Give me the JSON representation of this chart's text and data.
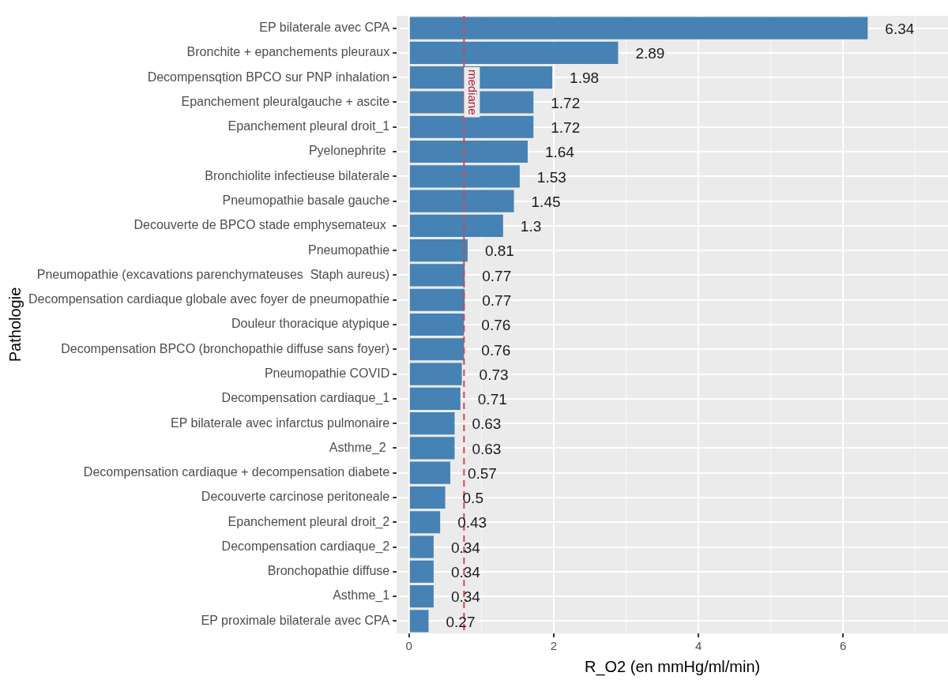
{
  "chart_data": {
    "type": "bar",
    "orientation": "horizontal",
    "xlabel": "R_O2 (en mmHg/ml/min)",
    "ylabel": "Pathologie",
    "categories": [
      "EP bilaterale avec CPA",
      "Bronchite + epanchements pleuraux",
      "Decompensqtion BPCO sur PNP inhalation",
      "Epanchement pleuralgauche + ascite",
      "Epanchement pleural droit_1",
      "Pyelonephrite ",
      "Bronchiolite infectieuse bilaterale",
      "Pneumopathie basale gauche",
      "Decouverte de BPCO stade emphysemateux ",
      "Pneumopathie",
      "Pneumopathie (excavations parenchymateuses  Staph aureus)",
      "Decompensation cardiaque globale avec foyer de pneumopathie",
      "Douleur thoracique atypique",
      "Decompensation BPCO (bronchopathie diffuse sans foyer)",
      "Pneumopathie COVID",
      "Decompensation cardiaque_1",
      "EP bilaterale avec infarctus pulmonaire",
      "Asthme_2 ",
      "Decompensation cardiaque + decompensation diabete",
      "Decouverte carcinose peritoneale",
      "Epanchement pleural droit_2",
      "Decompensation cardiaque_2",
      "Bronchopathie diffuse",
      "Asthme_1",
      "EP proximale bilaterale avec CPA"
    ],
    "values": [
      6.34,
      2.89,
      1.98,
      1.72,
      1.72,
      1.64,
      1.53,
      1.45,
      1.3,
      0.81,
      0.77,
      0.77,
      0.76,
      0.76,
      0.73,
      0.71,
      0.63,
      0.63,
      0.57,
      0.5,
      0.43,
      0.34,
      0.34,
      0.34,
      0.27
    ],
    "color": "#4682b4",
    "data_labels": true,
    "xlim": [
      -0.17,
      7.45
    ],
    "xticks": [
      0,
      {
        "value": 1,
        "label": null
      },
      2,
      {
        "value": 3,
        "label": null
      },
      4,
      {
        "value": 5,
        "label": null
      },
      6,
      {
        "value": 7,
        "label": null
      }
    ],
    "ref_lines": [
      {
        "axis": "x",
        "value": 0.76,
        "label": "mediane",
        "color": "#d9434b",
        "line_style": "dashed"
      }
    ],
    "grid": true,
    "legend": false
  }
}
